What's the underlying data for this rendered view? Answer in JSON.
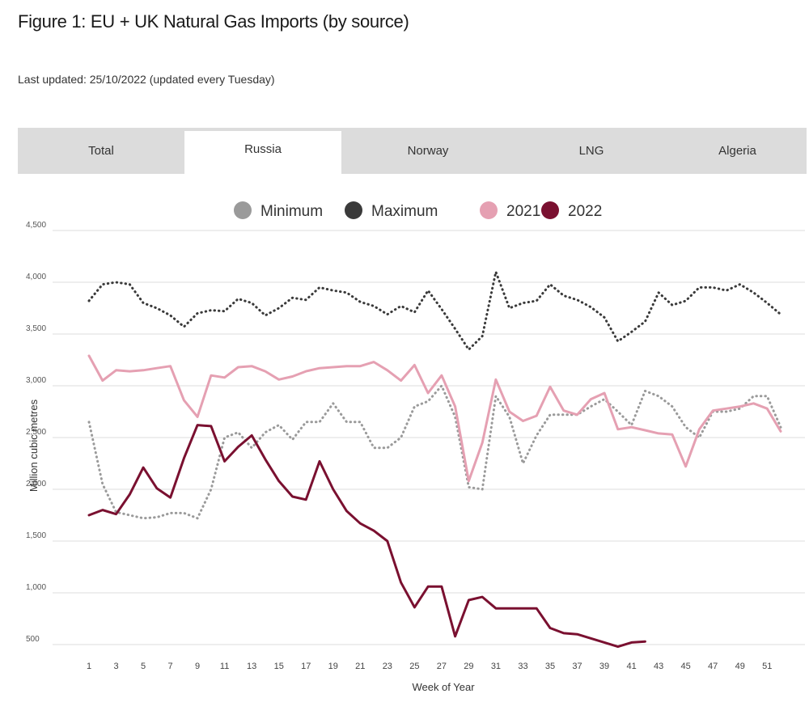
{
  "figure_title": "Figure 1: EU + UK Natural Gas Imports (by source)",
  "last_updated": "Last updated: 25/10/2022 (updated every Tuesday)",
  "tabs": [
    {
      "label": "Total",
      "active": false
    },
    {
      "label": "Russia",
      "active": true
    },
    {
      "label": "Norway",
      "active": false
    },
    {
      "label": "LNG",
      "active": false
    },
    {
      "label": "Algeria",
      "active": false
    }
  ],
  "colors": {
    "minimum": "#9a9a9a",
    "maximum": "#3a3a3a",
    "y2021": "#e5a0b2",
    "y2022": "#7a1030",
    "grid": "#dddddd",
    "tab_bg": "#dcdcdc"
  },
  "chart_data": {
    "type": "line",
    "xlabel": "Week of Year",
    "ylabel": "Million cubic metres",
    "ylim": [
      500,
      4500
    ],
    "xlim": [
      1,
      52
    ],
    "yticks": [
      500,
      1000,
      1500,
      2000,
      2500,
      3000,
      3500,
      4000,
      4500
    ],
    "ytick_labels": [
      "500",
      "1,000",
      "1,500",
      "2,000",
      "2,500",
      "3,000",
      "3,500",
      "4,000",
      "4,500"
    ],
    "xticks": [
      1,
      3,
      5,
      7,
      9,
      11,
      13,
      15,
      17,
      19,
      21,
      23,
      25,
      27,
      29,
      31,
      33,
      35,
      37,
      39,
      41,
      43,
      45,
      47,
      49,
      51
    ],
    "grid": true,
    "legend_position": "top-center",
    "series": [
      {
        "name": "Minimum",
        "style": "dotted",
        "x": [
          1,
          2,
          3,
          4,
          5,
          6,
          7,
          8,
          9,
          10,
          11,
          12,
          13,
          14,
          15,
          16,
          17,
          18,
          19,
          20,
          21,
          22,
          23,
          24,
          25,
          26,
          27,
          28,
          29,
          30,
          31,
          32,
          33,
          34,
          35,
          36,
          37,
          38,
          39,
          40,
          41,
          42,
          43,
          44,
          45,
          46,
          47,
          48,
          49,
          50,
          51,
          52
        ],
        "values": [
          2650,
          2050,
          1780,
          1750,
          1720,
          1730,
          1770,
          1770,
          1720,
          2000,
          2500,
          2550,
          2400,
          2550,
          2620,
          2480,
          2650,
          2650,
          2830,
          2650,
          2650,
          2400,
          2400,
          2500,
          2800,
          2850,
          3000,
          2700,
          2020,
          2000,
          2900,
          2700,
          2250,
          2520,
          2720,
          2720,
          2720,
          2800,
          2870,
          2750,
          2620,
          2950,
          2900,
          2800,
          2600,
          2500,
          2750,
          2750,
          2780,
          2900,
          2900,
          2600
        ]
      },
      {
        "name": "Maximum",
        "style": "dotted",
        "x": [
          1,
          2,
          3,
          4,
          5,
          6,
          7,
          8,
          9,
          10,
          11,
          12,
          13,
          14,
          15,
          16,
          17,
          18,
          19,
          20,
          21,
          22,
          23,
          24,
          25,
          26,
          27,
          28,
          29,
          30,
          31,
          32,
          33,
          34,
          35,
          36,
          37,
          38,
          39,
          40,
          41,
          42,
          43,
          44,
          45,
          46,
          47,
          48,
          49,
          50,
          51,
          52
        ],
        "values": [
          3820,
          3980,
          4000,
          3980,
          3800,
          3750,
          3680,
          3570,
          3700,
          3730,
          3720,
          3840,
          3800,
          3680,
          3750,
          3850,
          3830,
          3950,
          3920,
          3900,
          3810,
          3770,
          3690,
          3770,
          3710,
          3920,
          3740,
          3550,
          3350,
          3480,
          4100,
          3750,
          3800,
          3820,
          3980,
          3870,
          3830,
          3760,
          3660,
          3430,
          3520,
          3620,
          3900,
          3780,
          3820,
          3950,
          3950,
          3920,
          3980,
          3900,
          3800,
          3690
        ]
      },
      {
        "name": "2021",
        "style": "solid",
        "x": [
          1,
          2,
          3,
          4,
          5,
          6,
          7,
          8,
          9,
          10,
          11,
          12,
          13,
          14,
          15,
          16,
          17,
          18,
          19,
          20,
          21,
          22,
          23,
          24,
          25,
          26,
          27,
          28,
          29,
          30,
          31,
          32,
          33,
          34,
          35,
          36,
          37,
          38,
          39,
          40,
          41,
          42,
          43,
          44,
          45,
          46,
          47,
          48,
          49,
          50,
          51,
          52
        ],
        "values": [
          3290,
          3050,
          3150,
          3140,
          3150,
          3170,
          3190,
          2860,
          2700,
          3100,
          3080,
          3180,
          3190,
          3140,
          3060,
          3090,
          3140,
          3170,
          3180,
          3190,
          3190,
          3230,
          3150,
          3050,
          3200,
          2930,
          3100,
          2800,
          2080,
          2450,
          3060,
          2750,
          2660,
          2710,
          2990,
          2760,
          2720,
          2870,
          2930,
          2580,
          2600,
          2570,
          2540,
          2530,
          2220,
          2580,
          2760,
          2780,
          2800,
          2830,
          2780,
          2560
        ]
      },
      {
        "name": "2022",
        "style": "solid",
        "x": [
          1,
          2,
          3,
          4,
          5,
          6,
          7,
          8,
          9,
          10,
          11,
          12,
          13,
          14,
          15,
          16,
          17,
          18,
          19,
          20,
          21,
          22,
          23,
          24,
          25,
          26,
          27,
          28,
          29,
          30,
          31,
          32,
          33,
          34,
          35,
          36,
          37,
          38,
          39,
          40,
          41,
          42
        ],
        "values": [
          1750,
          1800,
          1760,
          1950,
          2210,
          2010,
          1920,
          2300,
          2620,
          2610,
          2270,
          2410,
          2520,
          2290,
          2080,
          1930,
          1900,
          2270,
          2000,
          1790,
          1670,
          1600,
          1500,
          1100,
          860,
          1060,
          1060,
          580,
          930,
          960,
          850,
          850,
          850,
          850,
          660,
          610,
          600,
          560,
          520,
          480,
          520,
          530
        ]
      }
    ]
  }
}
